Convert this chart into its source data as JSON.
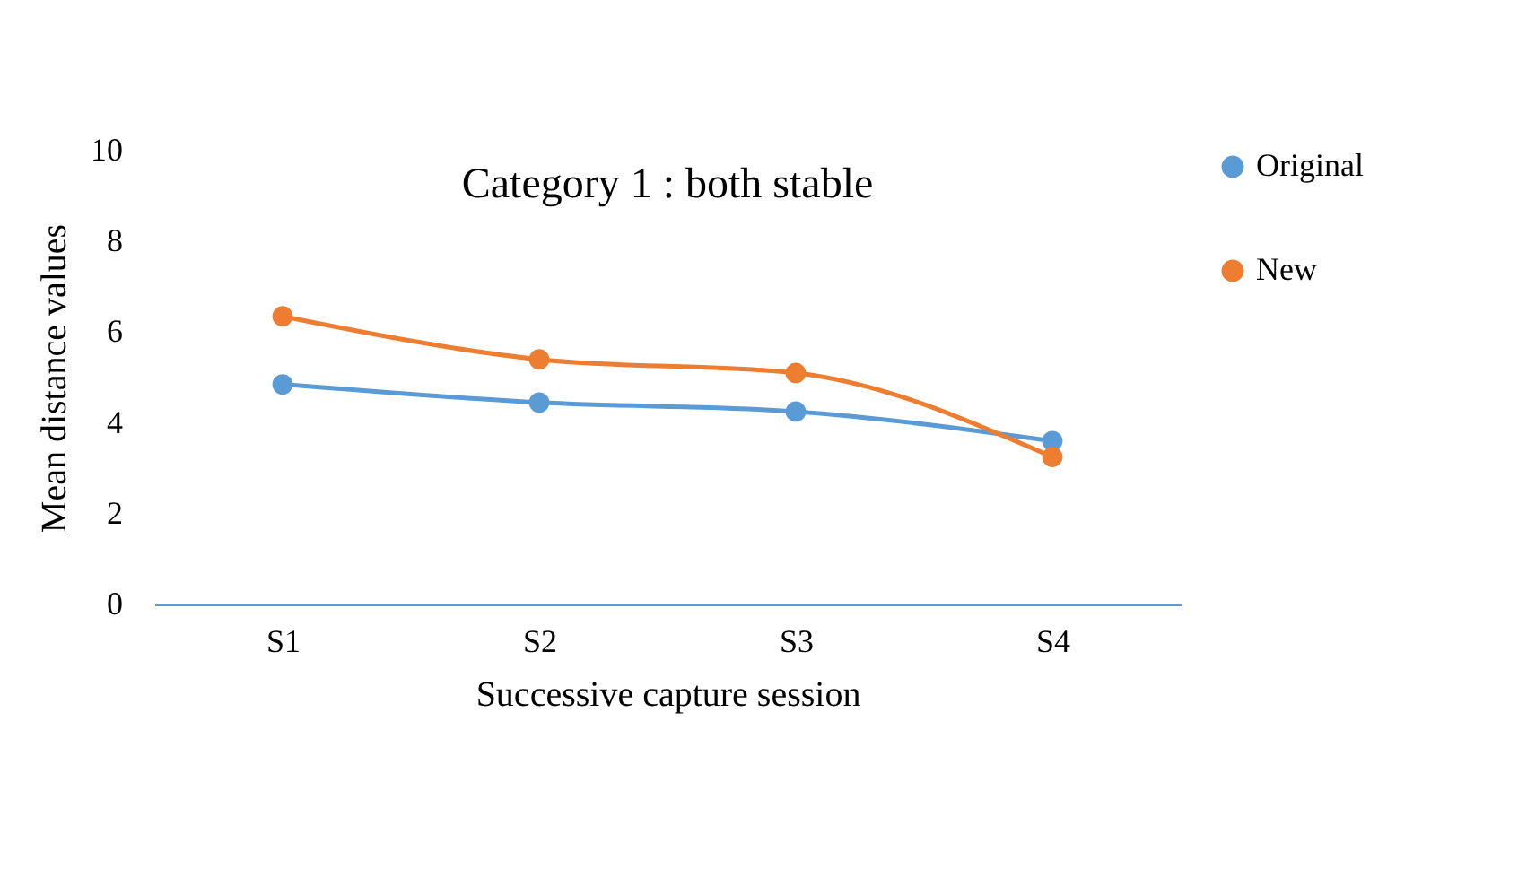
{
  "chart_data": {
    "type": "line",
    "title": "Category 1 : both stable",
    "xlabel": "Successive capture session",
    "ylabel": "Mean distance values",
    "categories": [
      "S1",
      "S2",
      "S3",
      "S4"
    ],
    "series": [
      {
        "name": "Original",
        "color": "#5b9bd5",
        "values": [
          4.85,
          4.45,
          4.25,
          3.6
        ]
      },
      {
        "name": "New",
        "color": "#ed7d31",
        "values": [
          6.35,
          5.4,
          5.1,
          3.25
        ]
      }
    ],
    "ylim": [
      0,
      10
    ],
    "yticks": [
      0,
      2,
      4,
      6,
      8,
      10
    ],
    "grid": false,
    "legend": "right",
    "marker": "circle",
    "line_style": "solid"
  }
}
